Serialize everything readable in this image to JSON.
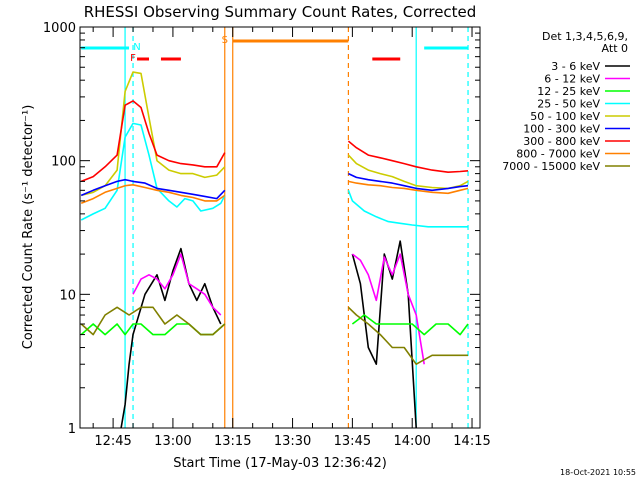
{
  "chart_data": {
    "type": "line",
    "title": "RHESSI Observing Summary Count Rates, Corrected",
    "xlabel": "Start Time (17-May-03 12:36:42)",
    "ylabel": "Corrected Count Rate (s⁻¹ detector⁻¹)",
    "y_scale": "log",
    "ylim": [
      1,
      1000
    ],
    "xlim": [
      "12:36:42",
      "14:17:00"
    ],
    "x_ticks": [
      "12:45",
      "13:00",
      "13:15",
      "13:30",
      "13:45",
      "14:00",
      "14:15"
    ],
    "y_ticks": [
      "1",
      "10",
      "100",
      "1000"
    ],
    "legend_header": [
      "Det 1,3,4,5,6,9,",
      "Att 0"
    ],
    "legend_position": "right",
    "footer": "18-Oct-2021 10:55",
    "flags": [
      {
        "label": "F",
        "color": "#ff0000",
        "x": "12:50"
      },
      {
        "label": "N",
        "color": "#00ffff",
        "x": "12:51"
      },
      {
        "label": "S",
        "color": "#ff8000",
        "x": "13:13"
      }
    ],
    "flag_bars": [
      {
        "name": "N",
        "color": "#00ffff",
        "spans": [
          [
            "12:37",
            "12:49"
          ],
          [
            "14:03",
            "14:14"
          ]
        ]
      },
      {
        "name": "F",
        "color": "#ff0000",
        "spans": [
          [
            "12:51",
            "12:54"
          ],
          [
            "12:57",
            "13:02"
          ],
          [
            "13:50",
            "13:57"
          ]
        ]
      },
      {
        "name": "S",
        "color": "#ff8000",
        "spans": [
          [
            "13:15",
            "13:44"
          ]
        ]
      }
    ],
    "vlines": [
      {
        "x": "12:48",
        "color": "#00ffff",
        "style": "solid"
      },
      {
        "x": "12:50",
        "color": "#00ffff",
        "style": "dashed"
      },
      {
        "x": "13:13",
        "color": "#ff8000",
        "style": "solid"
      },
      {
        "x": "13:15",
        "color": "#ff8000",
        "style": "solid"
      },
      {
        "x": "13:44",
        "color": "#ff8000",
        "style": "dashed"
      },
      {
        "x": "14:01",
        "color": "#00ffff",
        "style": "solid"
      },
      {
        "x": "14:14",
        "color": "#00ffff",
        "style": "dashed"
      }
    ],
    "series": [
      {
        "name": "3 - 6 keV",
        "color": "#000000",
        "segments": [
          [
            [
              "12:47",
              1
            ],
            [
              "12:48",
              1.5
            ],
            [
              "12:49",
              3
            ],
            [
              "12:50",
              5
            ],
            [
              "12:53",
              10
            ],
            [
              "12:56",
              14
            ],
            [
              "12:58",
              9
            ],
            [
              "13:00",
              15
            ],
            [
              "13:02",
              22
            ],
            [
              "13:04",
              12
            ],
            [
              "13:06",
              9
            ],
            [
              "13:08",
              12
            ],
            [
              "13:10",
              8
            ],
            [
              "13:12",
              6
            ]
          ],
          [
            [
              "13:45",
              20
            ],
            [
              "13:47",
              12
            ],
            [
              "13:49",
              4
            ],
            [
              "13:51",
              3
            ],
            [
              "13:53",
              20
            ],
            [
              "13:55",
              13
            ],
            [
              "13:57",
              25
            ],
            [
              "13:59",
              10
            ],
            [
              "14:01",
              1
            ]
          ]
        ]
      },
      {
        "name": "6 - 12 keV",
        "color": "#ff00ff",
        "segments": [
          [
            [
              "12:50",
              10
            ],
            [
              "12:52",
              13
            ],
            [
              "12:54",
              14
            ],
            [
              "12:56",
              13
            ],
            [
              "12:58",
              11
            ],
            [
              "13:00",
              14
            ],
            [
              "13:02",
              20
            ],
            [
              "13:04",
              12
            ],
            [
              "13:06",
              11
            ],
            [
              "13:08",
              10
            ],
            [
              "13:10",
              8
            ],
            [
              "13:12",
              7
            ]
          ],
          [
            [
              "13:45",
              20
            ],
            [
              "13:47",
              18
            ],
            [
              "13:49",
              14
            ],
            [
              "13:51",
              9
            ],
            [
              "13:53",
              19
            ],
            [
              "13:55",
              14
            ],
            [
              "13:57",
              20
            ],
            [
              "13:59",
              10
            ],
            [
              "14:01",
              7
            ],
            [
              "14:03",
              3
            ]
          ]
        ]
      },
      {
        "name": "12 - 25 keV",
        "color": "#00ff00",
        "segments": [
          [
            [
              "12:37",
              5
            ],
            [
              "12:40",
              6
            ],
            [
              "12:43",
              5
            ],
            [
              "12:46",
              6
            ],
            [
              "12:48",
              5
            ],
            [
              "12:50",
              6
            ],
            [
              "12:52",
              6
            ],
            [
              "12:55",
              5
            ],
            [
              "12:58",
              5
            ],
            [
              "13:01",
              6
            ],
            [
              "13:04",
              6
            ],
            [
              "13:07",
              5
            ],
            [
              "13:10",
              5
            ],
            [
              "13:13",
              6
            ]
          ],
          [
            [
              "13:45",
              6
            ],
            [
              "13:48",
              7
            ],
            [
              "13:51",
              6
            ],
            [
              "13:54",
              6
            ],
            [
              "13:57",
              6
            ],
            [
              "14:00",
              6
            ],
            [
              "14:03",
              5
            ],
            [
              "14:06",
              6
            ],
            [
              "14:09",
              6
            ],
            [
              "14:12",
              5
            ],
            [
              "14:14",
              6
            ]
          ]
        ]
      },
      {
        "name": "25 - 50 keV",
        "color": "#00ffff",
        "segments": [
          [
            [
              "12:37",
              36
            ],
            [
              "12:40",
              40
            ],
            [
              "12:43",
              44
            ],
            [
              "12:46",
              60
            ],
            [
              "12:48",
              150
            ],
            [
              "12:50",
              190
            ],
            [
              "12:52",
              185
            ],
            [
              "12:54",
              110
            ],
            [
              "12:56",
              62
            ],
            [
              "12:59",
              50
            ],
            [
              "13:01",
              45
            ],
            [
              "13:03",
              52
            ],
            [
              "13:05",
              50
            ],
            [
              "13:07",
              42
            ],
            [
              "13:10",
              44
            ],
            [
              "13:12",
              48
            ],
            [
              "13:13",
              55
            ]
          ],
          [
            [
              "13:44",
              60
            ],
            [
              "13:45",
              50
            ],
            [
              "13:48",
              42
            ],
            [
              "13:51",
              38
            ],
            [
              "13:54",
              35
            ],
            [
              "13:57",
              34
            ],
            [
              "14:00",
              33
            ],
            [
              "14:04",
              32
            ],
            [
              "14:08",
              32
            ],
            [
              "14:12",
              32
            ],
            [
              "14:14",
              32
            ]
          ]
        ]
      },
      {
        "name": "50 - 100 keV",
        "color": "#cccc00",
        "segments": [
          [
            [
              "12:37",
              55
            ],
            [
              "12:40",
              58
            ],
            [
              "12:43",
              65
            ],
            [
              "12:46",
              85
            ],
            [
              "12:48",
              330
            ],
            [
              "12:50",
              460
            ],
            [
              "12:52",
              450
            ],
            [
              "12:54",
              210
            ],
            [
              "12:56",
              100
            ],
            [
              "12:59",
              85
            ],
            [
              "13:02",
              80
            ],
            [
              "13:05",
              80
            ],
            [
              "13:08",
              75
            ],
            [
              "13:11",
              78
            ],
            [
              "13:13",
              90
            ]
          ],
          [
            [
              "13:44",
              110
            ],
            [
              "13:46",
              95
            ],
            [
              "13:49",
              85
            ],
            [
              "13:52",
              80
            ],
            [
              "13:55",
              76
            ],
            [
              "13:58",
              70
            ],
            [
              "14:01",
              65
            ],
            [
              "14:05",
              63
            ],
            [
              "14:09",
              62
            ],
            [
              "14:12",
              65
            ],
            [
              "14:14",
              70
            ]
          ]
        ]
      },
      {
        "name": "100 - 300 keV",
        "color": "#0000ff",
        "segments": [
          [
            [
              "12:37",
              55
            ],
            [
              "12:40",
              60
            ],
            [
              "12:43",
              65
            ],
            [
              "12:46",
              70
            ],
            [
              "12:48",
              72
            ],
            [
              "12:50",
              70
            ],
            [
              "12:53",
              68
            ],
            [
              "12:56",
              62
            ],
            [
              "12:59",
              60
            ],
            [
              "13:02",
              58
            ],
            [
              "13:05",
              56
            ],
            [
              "13:08",
              54
            ],
            [
              "13:11",
              52
            ],
            [
              "13:13",
              60
            ]
          ],
          [
            [
              "13:44",
              80
            ],
            [
              "13:46",
              75
            ],
            [
              "13:49",
              72
            ],
            [
              "13:52",
              70
            ],
            [
              "13:55",
              68
            ],
            [
              "13:58",
              65
            ],
            [
              "14:01",
              62
            ],
            [
              "14:05",
              60
            ],
            [
              "14:09",
              62
            ],
            [
              "14:12",
              64
            ],
            [
              "14:14",
              65
            ]
          ]
        ]
      },
      {
        "name": "300 - 800 keV",
        "color": "#ff0000",
        "segments": [
          [
            [
              "12:37",
              70
            ],
            [
              "12:40",
              76
            ],
            [
              "12:43",
              90
            ],
            [
              "12:46",
              110
            ],
            [
              "12:48",
              260
            ],
            [
              "12:50",
              280
            ],
            [
              "12:52",
              250
            ],
            [
              "12:54",
              160
            ],
            [
              "12:56",
              110
            ],
            [
              "12:59",
              100
            ],
            [
              "13:02",
              95
            ],
            [
              "13:05",
              93
            ],
            [
              "13:08",
              90
            ],
            [
              "13:11",
              90
            ],
            [
              "13:13",
              115
            ]
          ],
          [
            [
              "13:44",
              140
            ],
            [
              "13:46",
              125
            ],
            [
              "13:49",
              110
            ],
            [
              "13:52",
              105
            ],
            [
              "13:55",
              100
            ],
            [
              "13:58",
              95
            ],
            [
              "14:01",
              90
            ],
            [
              "14:05",
              85
            ],
            [
              "14:09",
              82
            ],
            [
              "14:12",
              83
            ],
            [
              "14:14",
              84
            ]
          ]
        ]
      },
      {
        "name": "800 - 7000 keV",
        "color": "#ff8000",
        "segments": [
          [
            [
              "12:37",
              48
            ],
            [
              "12:40",
              52
            ],
            [
              "12:43",
              58
            ],
            [
              "12:46",
              62
            ],
            [
              "12:48",
              65
            ],
            [
              "12:50",
              66
            ],
            [
              "12:53",
              63
            ],
            [
              "12:56",
              60
            ],
            [
              "12:59",
              58
            ],
            [
              "13:02",
              55
            ],
            [
              "13:05",
              53
            ],
            [
              "13:08",
              50
            ],
            [
              "13:11",
              50
            ],
            [
              "13:13",
              55
            ]
          ],
          [
            [
              "13:44",
              70
            ],
            [
              "13:46",
              68
            ],
            [
              "13:49",
              66
            ],
            [
              "13:52",
              65
            ],
            [
              "13:55",
              63
            ],
            [
              "13:58",
              62
            ],
            [
              "14:01",
              60
            ],
            [
              "14:05",
              58
            ],
            [
              "14:09",
              57
            ],
            [
              "14:12",
              60
            ],
            [
              "14:14",
              62
            ]
          ]
        ]
      },
      {
        "name": "7000 - 15000 keV",
        "color": "#808000",
        "segments": [
          [
            [
              "12:37",
              6
            ],
            [
              "12:40",
              5
            ],
            [
              "12:43",
              7
            ],
            [
              "12:46",
              8
            ],
            [
              "12:49",
              7
            ],
            [
              "12:52",
              8
            ],
            [
              "12:55",
              8
            ],
            [
              "12:58",
              6
            ],
            [
              "13:01",
              7
            ],
            [
              "13:04",
              6
            ],
            [
              "13:07",
              5
            ],
            [
              "13:10",
              5
            ],
            [
              "13:13",
              6
            ]
          ],
          [
            [
              "13:44",
              8
            ],
            [
              "13:46",
              7
            ],
            [
              "13:49",
              6
            ],
            [
              "13:52",
              5
            ],
            [
              "13:55",
              4
            ],
            [
              "13:58",
              4
            ],
            [
              "14:01",
              3
            ],
            [
              "14:05",
              3.5
            ],
            [
              "14:09",
              3.5
            ],
            [
              "14:12",
              3.5
            ],
            [
              "14:14",
              3.5
            ]
          ]
        ]
      }
    ]
  },
  "colors": {
    "background": "#ffffff",
    "axes": "#000000"
  }
}
